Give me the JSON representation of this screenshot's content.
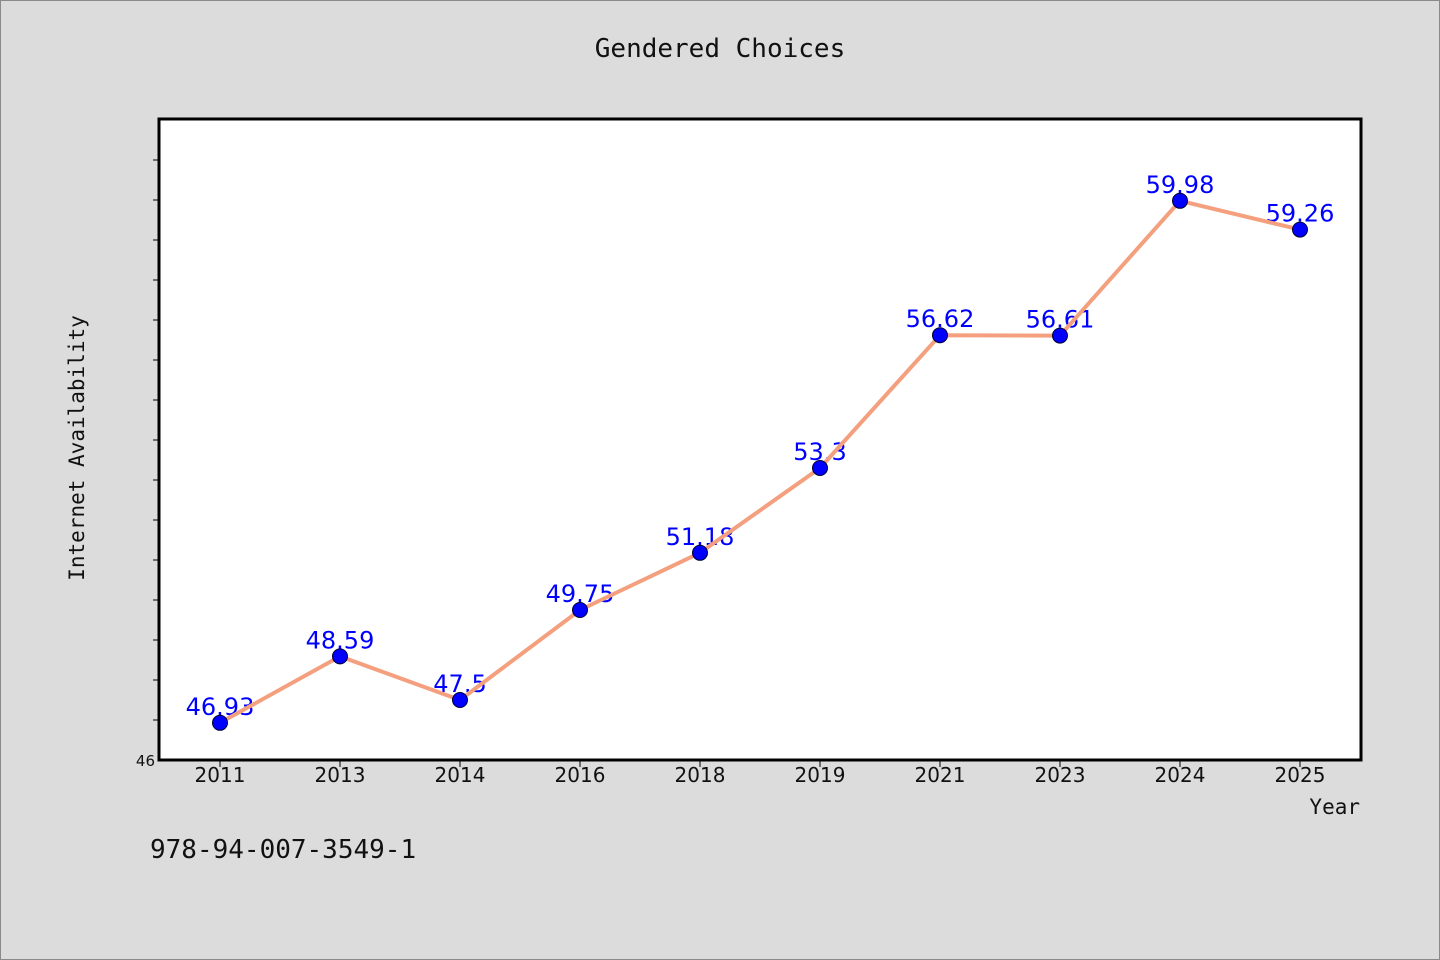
{
  "chart_data": {
    "type": "line",
    "title": "Gendered Choices",
    "xlabel": "Year",
    "ylabel": "Internet Availability",
    "categories": [
      "2011",
      "2013",
      "2014",
      "2016",
      "2018",
      "2019",
      "2021",
      "2023",
      "2024",
      "2025"
    ],
    "series": [
      {
        "values": [
          46.93,
          48.59,
          47.5,
          49.75,
          51.18,
          53.3,
          56.62,
          56.61,
          59.98,
          59.26
        ],
        "data_labels": [
          "46.93",
          "48.59",
          "47.5",
          "49.75",
          "51.18",
          "53.3",
          "56.62",
          "56.61",
          "59.98",
          "59.26"
        ]
      }
    ],
    "ylim": [
      46,
      62
    ],
    "y_tick_labels": [
      "46"
    ],
    "grid": false,
    "legend": "none",
    "colors": {
      "line": "#f4a07f",
      "marker": "#0000ff",
      "marker_edge": "#000033",
      "data_label": "#0000ff",
      "plot_background": "#ffffff",
      "page_background": "#dcdcdc"
    }
  },
  "footer_text": "978-94-007-3549-1"
}
